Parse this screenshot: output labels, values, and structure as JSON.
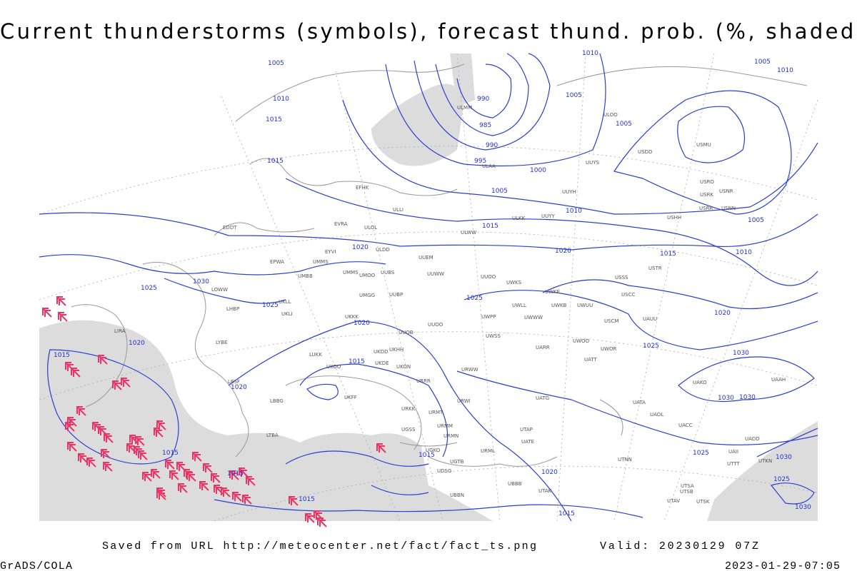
{
  "header": {
    "title": "Current thunderstorms (symbols), forecast thund. prob. (%, shaded)"
  },
  "footer": {
    "source": "Saved from URL http://meteocenter.net/fact/fact_ts.png",
    "valid": "Valid: 20230129 07Z",
    "software": "GrADS/COLA",
    "timestamp": "2023-01-29-07:05"
  },
  "isobar_labels": [
    1005,
    1010,
    1010,
    1015,
    1015,
    990,
    985,
    990,
    995,
    1000,
    1005,
    1010,
    1015,
    1020,
    1020,
    1005,
    1005,
    1005,
    1010,
    1005,
    1010,
    1015,
    1030,
    1025,
    1025,
    1020,
    1015,
    1020,
    1015,
    1025,
    1020,
    1025,
    1030,
    1030,
    1030,
    1020,
    1015,
    1015,
    1015,
    1015,
    1020,
    1025,
    1030,
    1025,
    1030,
    1015
  ],
  "stations": [
    "ULMM",
    "ULAA",
    "EFHK",
    "ULLI",
    "EVRA",
    "ULOL",
    "ULWW",
    "ULKK",
    "UUYY",
    "UUYH",
    "UUYS",
    "ULOO",
    "USDD",
    "USMU",
    "USRO",
    "USRK",
    "USNR",
    "USRR",
    "USNN",
    "USHH",
    "EDDT",
    "EYVI",
    "UMMS",
    "EPWA",
    "UMBB",
    "ULDD",
    "UUEM",
    "UUWW",
    "UUOO",
    "UWKS",
    "UWKE",
    "UWKB",
    "UWUU",
    "USSS",
    "USTR",
    "USCC",
    "UWLL",
    "UWWW",
    "UWPP",
    "UWSS",
    "UWOO",
    "UWOR",
    "UATT",
    "UARR",
    "UAUU",
    "USCM",
    "UUBP",
    "UMGG",
    "UMMS",
    "UMOO",
    "UUBS",
    "UKLL",
    "UKLI",
    "LHBP",
    "LOWW",
    "UKKK",
    "UUOB",
    "UUOO",
    "UKHH",
    "UKDD",
    "UKOO",
    "LUKK",
    "UKDE",
    "UKON",
    "URRR",
    "URWW",
    "URWI",
    "UATG",
    "UATA",
    "UAOL",
    "UACC",
    "UKFF",
    "URKK",
    "UGSS",
    "URMT",
    "URMM",
    "URMN",
    "URML",
    "UATE",
    "UTAP",
    "UGKO",
    "UGTB",
    "UDSG",
    "UBBN",
    "UBBB",
    "UTAK",
    "UTNN",
    "UTSA",
    "UTSB",
    "UTAV",
    "UTSK",
    "UAAH",
    "UAKO",
    "UADD",
    "UAII",
    "UTTT",
    "UTKN",
    "LYBE",
    "LBSF",
    "LBBG",
    "LTBA",
    "LIRA"
  ]
}
